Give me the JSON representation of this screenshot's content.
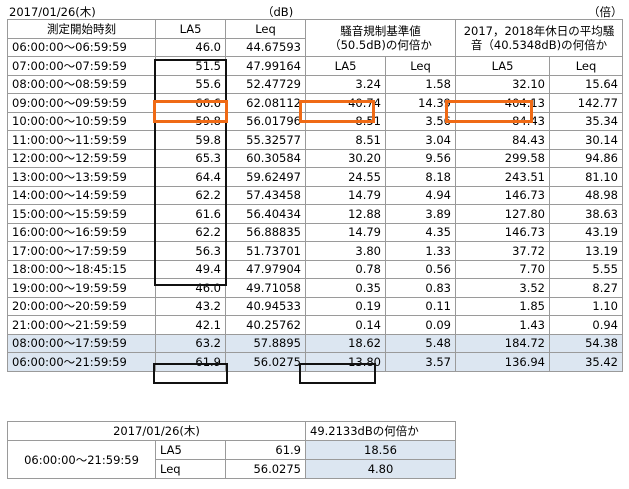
{
  "header": {
    "date": "2017/01/26(木)",
    "unit_db": "（dB)",
    "unit_times": "（倍）"
  },
  "columns": {
    "time": "測定開始時刻",
    "la5": "LA5",
    "leq": "Leq",
    "group1_line1": "騒音規制基準値",
    "group1_line2": "（50.5dB)の何倍か",
    "group2_line1": "2017，2018年休日の平均騒",
    "group2_line2": "音（40.5348dB)の何倍か",
    "g1_la5": "LA5",
    "g1_leq": "Leq",
    "g2_la5": "LA5",
    "g2_leq": "Leq"
  },
  "rows": [
    {
      "time": "06:00:00～06:59:59",
      "la5": "46.0",
      "leq": "44.67593",
      "g1_la5": "",
      "g1_leq": "",
      "g2_la5": "",
      "g2_leq": ""
    },
    {
      "time": "07:00:00～07:59:59",
      "la5": "51.5",
      "leq": "47.99164",
      "g1_la5": "",
      "g1_leq": "",
      "g2_la5": "",
      "g2_leq": ""
    },
    {
      "time": "08:00:00～08:59:59",
      "la5": "55.6",
      "leq": "52.47729",
      "g1_la5": "3.24",
      "g1_leq": "1.58",
      "g2_la5": "32.10",
      "g2_leq": "15.64"
    },
    {
      "time": "09:00:00～09:59:59",
      "la5": "66.6",
      "leq": "62.08112",
      "g1_la5": "40.74",
      "g1_leq": "14.39",
      "g2_la5": "404.13",
      "g2_leq": "142.77"
    },
    {
      "time": "10:00:00～10:59:59",
      "la5": "59.8",
      "leq": "56.01796",
      "g1_la5": "8.51",
      "g1_leq": "3.56",
      "g2_la5": "84.43",
      "g2_leq": "35.34"
    },
    {
      "time": "11:00:00～11:59:59",
      "la5": "59.8",
      "leq": "55.32577",
      "g1_la5": "8.51",
      "g1_leq": "3.04",
      "g2_la5": "84.43",
      "g2_leq": "30.14"
    },
    {
      "time": "12:00:00～12:59:59",
      "la5": "65.3",
      "leq": "60.30584",
      "g1_la5": "30.20",
      "g1_leq": "9.56",
      "g2_la5": "299.58",
      "g2_leq": "94.86"
    },
    {
      "time": "13:00:00～13:59:59",
      "la5": "64.4",
      "leq": "59.62497",
      "g1_la5": "24.55",
      "g1_leq": "8.18",
      "g2_la5": "243.51",
      "g2_leq": "81.10"
    },
    {
      "time": "14:00:00～14:59:59",
      "la5": "62.2",
      "leq": "57.43458",
      "g1_la5": "14.79",
      "g1_leq": "4.94",
      "g2_la5": "146.73",
      "g2_leq": "48.98"
    },
    {
      "time": "15:00:00～15:59:59",
      "la5": "61.6",
      "leq": "56.40434",
      "g1_la5": "12.88",
      "g1_leq": "3.89",
      "g2_la5": "127.80",
      "g2_leq": "38.63"
    },
    {
      "time": "16:00:00～16:59:59",
      "la5": "62.2",
      "leq": "56.88835",
      "g1_la5": "14.79",
      "g1_leq": "4.35",
      "g2_la5": "146.73",
      "g2_leq": "43.19"
    },
    {
      "time": "17:00:00～17:59:59",
      "la5": "56.3",
      "leq": "51.73701",
      "g1_la5": "3.80",
      "g1_leq": "1.33",
      "g2_la5": "37.72",
      "g2_leq": "13.19"
    },
    {
      "time": "18:00:00～18:45:15",
      "la5": "49.4",
      "leq": "47.97904",
      "g1_la5": "0.78",
      "g1_leq": "0.56",
      "g2_la5": "7.70",
      "g2_leq": "5.55"
    },
    {
      "time": "19:00:00～19:59:59",
      "la5": "46.0",
      "leq": "49.71058",
      "g1_la5": "0.35",
      "g1_leq": "0.83",
      "g2_la5": "3.52",
      "g2_leq": "8.27"
    },
    {
      "time": "20:00:00～20:59:59",
      "la5": "43.2",
      "leq": "40.94533",
      "g1_la5": "0.19",
      "g1_leq": "0.11",
      "g2_la5": "1.85",
      "g2_leq": "1.10"
    },
    {
      "time": "21:00:00～21:59:59",
      "la5": "42.1",
      "leq": "40.25762",
      "g1_la5": "0.14",
      "g1_leq": "0.09",
      "g2_la5": "1.43",
      "g2_leq": "0.94"
    }
  ],
  "summary_rows": [
    {
      "time": "08:00:00～17:59:59",
      "la5": "63.2",
      "leq": "57.8895",
      "g1_la5": "18.62",
      "g1_leq": "5.48",
      "g2_la5": "184.72",
      "g2_leq": "54.38"
    },
    {
      "time": "06:00:00～21:59:59",
      "la5": "61.9",
      "leq": "56.0275",
      "g1_la5": "13.80",
      "g1_leq": "3.57",
      "g2_la5": "136.94",
      "g2_leq": "35.42"
    }
  ],
  "sub_table": {
    "date": "2017/01/26(木)",
    "header_right": "49.2133dBの何倍か",
    "time": "06:00:00～21:59:59",
    "rows": [
      {
        "label": "LA5",
        "value": "61.9",
        "ratio": "18.56"
      },
      {
        "label": "Leq",
        "value": "56.0275",
        "ratio": "4.80"
      }
    ]
  },
  "colors": {
    "shade": "#dce6f1",
    "highlight_orange": "#ef6a15",
    "highlight_black": "#111111"
  }
}
